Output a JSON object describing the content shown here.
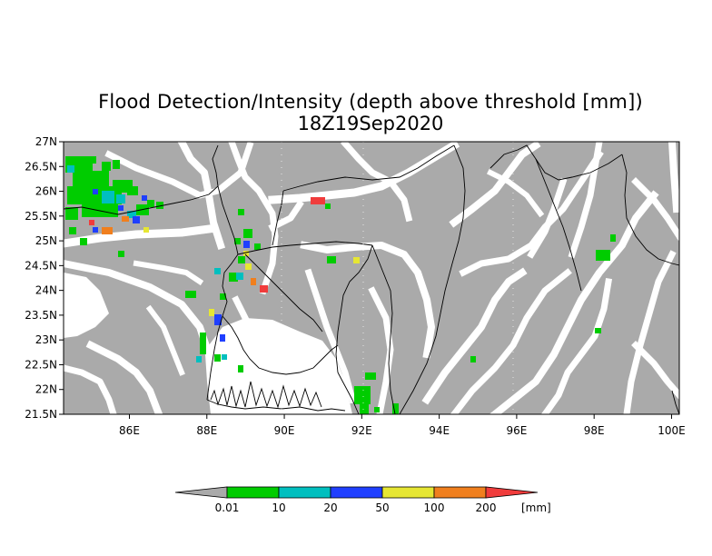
{
  "title": "Flood Detection/Intensity (depth above threshold [mm])",
  "subtitle": "18Z19Sep2020",
  "map": {
    "lat_labels": [
      "27N",
      "26.5N",
      "26N",
      "25.5N",
      "25N",
      "24.5N",
      "24N",
      "23.5N",
      "23N",
      "22.5N",
      "22N",
      "21.5N"
    ],
    "lon_labels": [
      "86E",
      "88E",
      "90E",
      "92E",
      "94E",
      "96E",
      "98E",
      "100E"
    ],
    "lat_range": [
      21.5,
      27.0
    ],
    "lon_range": [
      84.3,
      100.2
    ],
    "region_text": "No region text"
  },
  "legend": {
    "labels": [
      "0.01",
      "10",
      "20",
      "50",
      "100",
      "200"
    ],
    "unit": "[mm]",
    "colors": [
      "#aaaaaa",
      "#00cc00",
      "#00bfbf",
      "#1f3fff",
      "#e6e633",
      "#f07f1e",
      "#f03c3c"
    ]
  },
  "colors": {
    "land_gray": "#aaaaaa",
    "background": "#ffffff",
    "boundary": "#000000"
  }
}
